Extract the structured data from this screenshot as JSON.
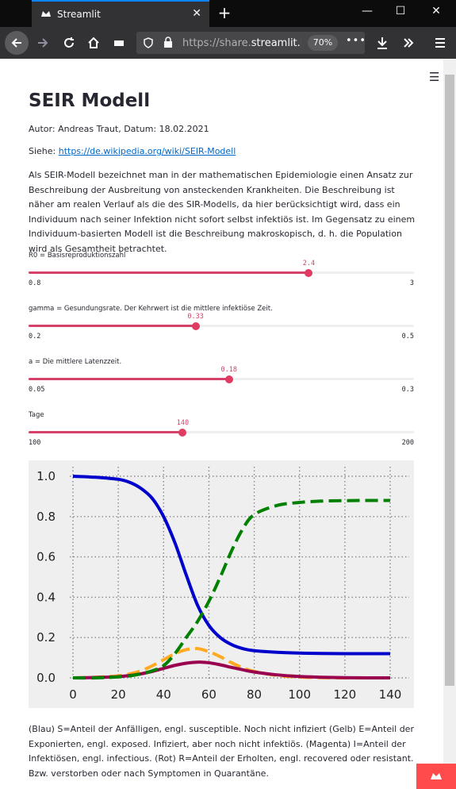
{
  "browser": {
    "tab_title": "Streamlit",
    "url_prefix": "https://share.",
    "url_domain": "streamlit.io",
    "zoom": "70%"
  },
  "page": {
    "title": "SEIR Modell",
    "author": "Autor: Andreas Traut, Datum: 18.02.2021",
    "see_label": "Siehe: ",
    "see_link": "https://de.wikipedia.org/wiki/SEIR-Modell",
    "intro": "Als SEIR-Modell bezeichnet man in der mathematischen Epidemiologie einen Ansatz zur Beschreibung der Ausbreitung von ansteckenden Krankheiten. Die Beschreibung ist näher am realen Verlauf als die des SIR-Modells, da hier berücksichtigt wird, dass ein Individuum nach seiner Infektion nicht sofort selbst infektiös ist. Im Gegensatz zu einem Individuum-basierten Modell ist die Beschreibung makroskopisch, d. h. die Population wird als Gesamtheit betrachtet.",
    "caption": "(Blau) S=Anteil der Anfälligen, engl. susceptible. Noch nicht infiziert (Gelb) E=Anteil der Exponierten, engl. exposed. Infiziert, aber noch nicht infektiös. (Magenta) I=Anteil der Infektiösen, engl. infectious. (Rot) R=Anteil der Erholten, engl. recovered oder resistant. Bzw. verstorben oder nach Symptomen in Quarantäne."
  },
  "sliders": [
    {
      "label": "R0 = Basisreproduktionszahl",
      "value": 2.4,
      "value_text": "2.4",
      "min": 0.8,
      "min_text": "0.8",
      "max": 3,
      "max_text": "3"
    },
    {
      "label": "gamma = Gesundungsrate. Der Kehrwert ist die mittlere infektiöse Zeit.",
      "value": 0.33,
      "value_text": "0.33",
      "min": 0.2,
      "min_text": "0.2",
      "max": 0.5,
      "max_text": "0.5"
    },
    {
      "label": "a = Die mittlere Latenzzeit.",
      "value": 0.18,
      "value_text": "0.18",
      "min": 0.05,
      "min_text": "0.05",
      "max": 0.3,
      "max_text": "0.3"
    },
    {
      "label": "Tage",
      "value": 140,
      "value_text": "140",
      "min": 100,
      "min_text": "100",
      "max": 200,
      "max_text": "200"
    }
  ],
  "colors": {
    "accent": "#e03c63",
    "chart_bg": "#efefef",
    "S": "#0000cc",
    "E": "#ffaa22",
    "I": "#99004d",
    "R": "#008000"
  },
  "chart_data": {
    "type": "line",
    "xlim": [
      0,
      140
    ],
    "ylim": [
      0,
      1
    ],
    "xticks": [
      0,
      20,
      40,
      60,
      80,
      100,
      120,
      140
    ],
    "yticks": [
      "0.0",
      "0.2",
      "0.4",
      "0.6",
      "0.8",
      "1.0"
    ],
    "grid": true,
    "x": [
      0,
      10,
      20,
      25,
      30,
      35,
      40,
      45,
      50,
      55,
      60,
      65,
      70,
      75,
      80,
      90,
      100,
      110,
      120,
      130,
      140
    ],
    "series": [
      {
        "key": "S",
        "style": "solid",
        "values": [
          1.0,
          0.995,
          0.985,
          0.97,
          0.94,
          0.89,
          0.8,
          0.67,
          0.51,
          0.36,
          0.26,
          0.2,
          0.165,
          0.145,
          0.135,
          0.127,
          0.123,
          0.121,
          0.12,
          0.12,
          0.12
        ]
      },
      {
        "key": "E",
        "style": "dashed",
        "values": [
          0.0,
          0.003,
          0.01,
          0.02,
          0.035,
          0.06,
          0.09,
          0.12,
          0.14,
          0.145,
          0.13,
          0.105,
          0.075,
          0.05,
          0.032,
          0.012,
          0.004,
          0.001,
          0.0,
          0.0,
          0.0
        ]
      },
      {
        "key": "I",
        "style": "solid",
        "values": [
          0.0,
          0.002,
          0.006,
          0.012,
          0.02,
          0.032,
          0.047,
          0.062,
          0.073,
          0.078,
          0.075,
          0.065,
          0.052,
          0.04,
          0.029,
          0.015,
          0.007,
          0.003,
          0.001,
          0.0,
          0.0
        ]
      },
      {
        "key": "R",
        "style": "dashed",
        "values": [
          0.0,
          0.0,
          0.005,
          0.01,
          0.02,
          0.035,
          0.06,
          0.12,
          0.2,
          0.28,
          0.38,
          0.5,
          0.63,
          0.74,
          0.81,
          0.855,
          0.87,
          0.877,
          0.879,
          0.88,
          0.88
        ]
      }
    ]
  }
}
